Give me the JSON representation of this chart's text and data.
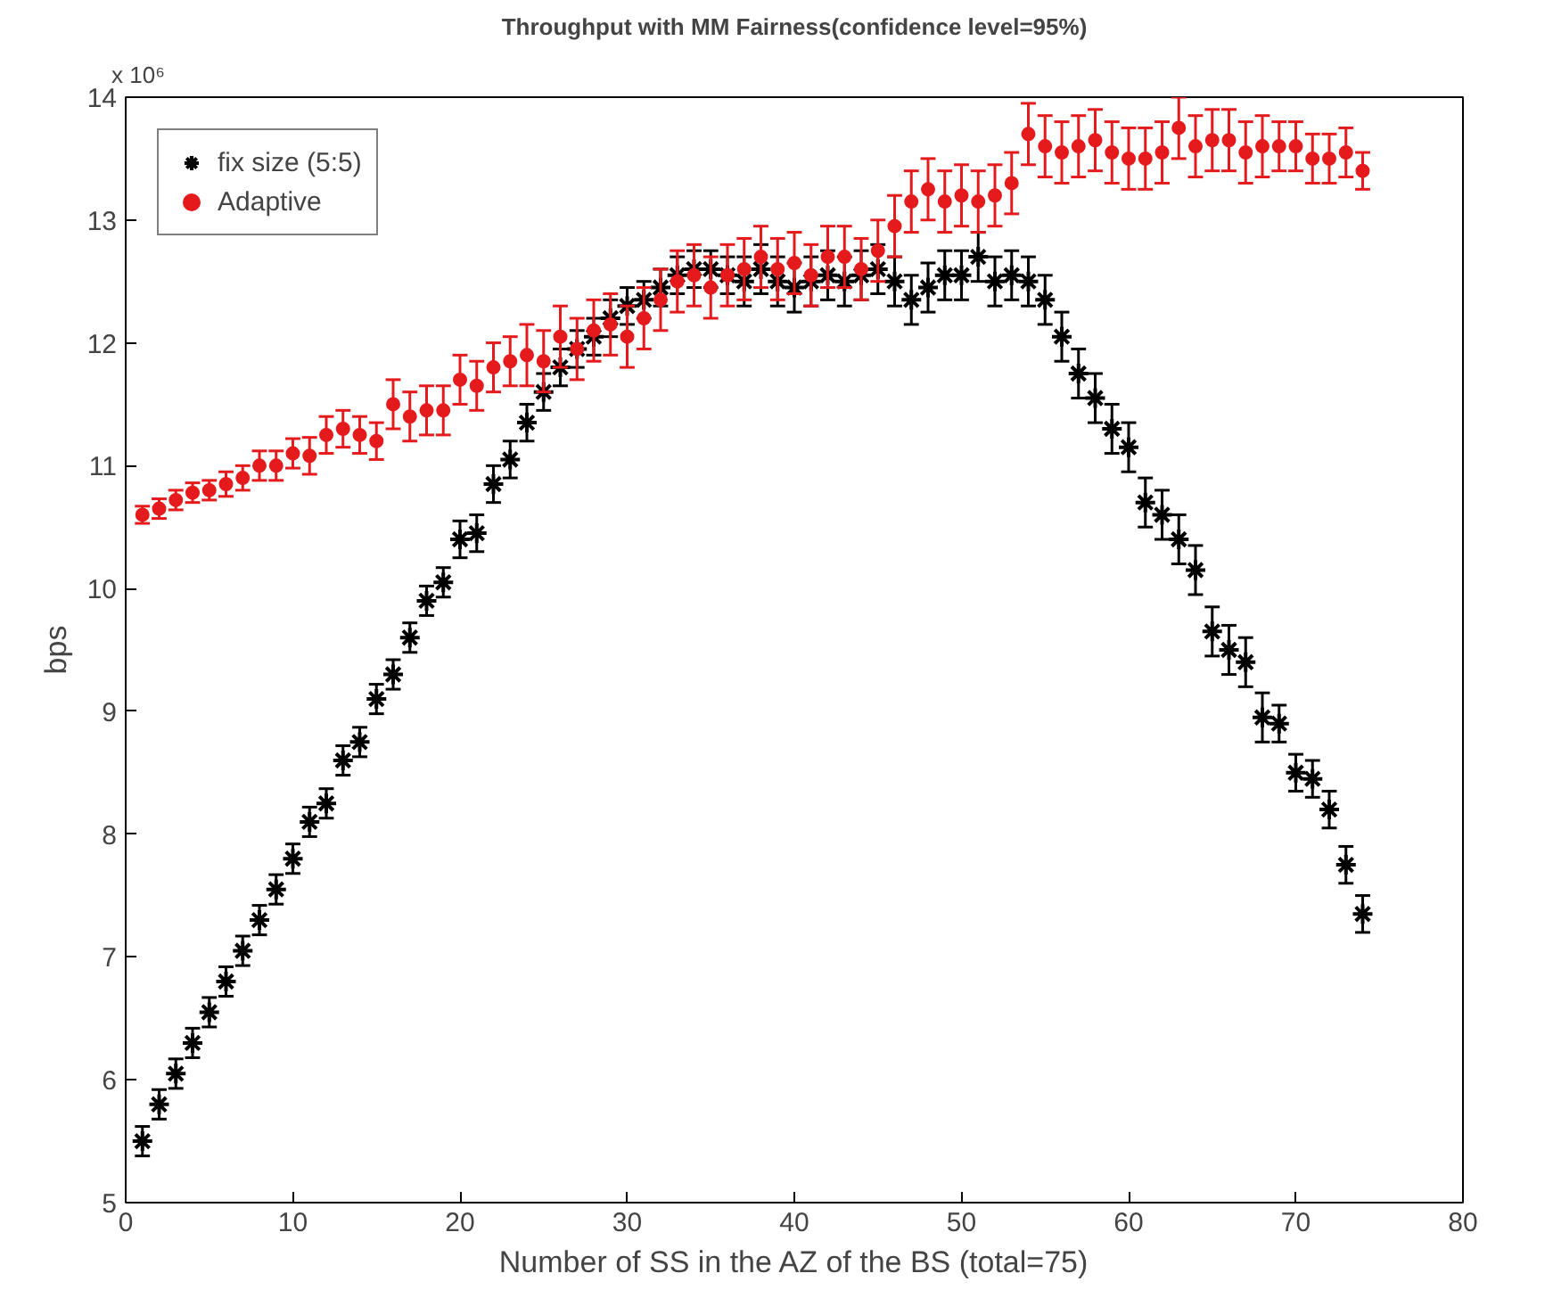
{
  "chart_data": {
    "type": "scatter",
    "title": "Throughput with MM Fairness(confidence level=95%)",
    "xlabel": "Number of SS in the AZ of the BS (total=75)",
    "ylabel": "bps",
    "annotations": [
      "x 10⁶"
    ],
    "x": [
      1,
      2,
      3,
      4,
      5,
      6,
      7,
      8,
      9,
      10,
      11,
      12,
      13,
      14,
      15,
      16,
      17,
      18,
      19,
      20,
      21,
      22,
      23,
      24,
      25,
      26,
      27,
      28,
      29,
      30,
      31,
      32,
      33,
      34,
      35,
      36,
      37,
      38,
      39,
      40,
      41,
      42,
      43,
      44,
      45,
      46,
      47,
      48,
      49,
      50,
      51,
      52,
      53,
      54,
      55,
      56,
      57,
      58,
      59,
      60,
      61,
      62,
      63,
      64,
      65,
      66,
      67,
      68,
      69,
      70,
      71,
      72,
      73,
      74
    ],
    "xlim": [
      0,
      80
    ],
    "xticks": [
      0,
      10,
      20,
      30,
      40,
      50,
      60,
      70,
      80
    ],
    "ylim": [
      5,
      14
    ],
    "yticks": [
      5,
      6,
      7,
      8,
      9,
      10,
      11,
      12,
      13,
      14
    ],
    "grid": false,
    "legend": "top left",
    "series": [
      {
        "name": "fix size (5:5)",
        "color": "#000000",
        "marker": "cross",
        "values": [
          5.5,
          5.8,
          6.05,
          6.3,
          6.55,
          6.8,
          7.05,
          7.3,
          7.55,
          7.8,
          8.1,
          8.25,
          8.6,
          8.75,
          9.1,
          9.3,
          9.6,
          9.9,
          10.05,
          10.4,
          10.45,
          10.85,
          11.05,
          11.35,
          11.6,
          11.8,
          11.95,
          12.05,
          12.2,
          12.3,
          12.35,
          12.45,
          12.55,
          12.6,
          12.6,
          12.55,
          12.5,
          12.6,
          12.5,
          12.45,
          12.5,
          12.55,
          12.5,
          12.55,
          12.6,
          12.5,
          12.35,
          12.45,
          12.55,
          12.55,
          12.7,
          12.5,
          12.55,
          12.5,
          12.35,
          12.05,
          11.75,
          11.55,
          11.3,
          11.15,
          10.7,
          10.6,
          10.4,
          10.15,
          9.65,
          9.5,
          9.4,
          8.95,
          8.9,
          8.5,
          8.45,
          8.2,
          7.75,
          7.35
        ],
        "errors": [
          0.12,
          0.12,
          0.12,
          0.12,
          0.12,
          0.12,
          0.12,
          0.12,
          0.12,
          0.12,
          0.12,
          0.12,
          0.12,
          0.12,
          0.12,
          0.12,
          0.12,
          0.12,
          0.12,
          0.15,
          0.15,
          0.15,
          0.15,
          0.15,
          0.15,
          0.15,
          0.15,
          0.15,
          0.15,
          0.15,
          0.15,
          0.15,
          0.15,
          0.15,
          0.15,
          0.15,
          0.2,
          0.2,
          0.2,
          0.2,
          0.2,
          0.2,
          0.2,
          0.2,
          0.2,
          0.2,
          0.2,
          0.2,
          0.2,
          0.2,
          0.2,
          0.2,
          0.2,
          0.2,
          0.2,
          0.2,
          0.2,
          0.2,
          0.2,
          0.2,
          0.2,
          0.2,
          0.2,
          0.2,
          0.2,
          0.2,
          0.2,
          0.2,
          0.15,
          0.15,
          0.15,
          0.15,
          0.15,
          0.15
        ]
      },
      {
        "name": "Adaptive",
        "color": "#e41a1c",
        "marker": "circle",
        "values": [
          10.6,
          10.65,
          10.72,
          10.78,
          10.8,
          10.85,
          10.9,
          11.0,
          11.0,
          11.1,
          11.08,
          11.25,
          11.3,
          11.25,
          11.2,
          11.5,
          11.4,
          11.45,
          11.45,
          11.7,
          11.65,
          11.8,
          11.85,
          11.9,
          11.85,
          12.05,
          11.95,
          12.1,
          12.15,
          12.05,
          12.2,
          12.35,
          12.5,
          12.55,
          12.45,
          12.55,
          12.6,
          12.7,
          12.6,
          12.65,
          12.55,
          12.7,
          12.7,
          12.6,
          12.75,
          12.95,
          13.15,
          13.25,
          13.15,
          13.2,
          13.15,
          13.2,
          13.3,
          13.7,
          13.6,
          13.55,
          13.6,
          13.65,
          13.55,
          13.5,
          13.5,
          13.55,
          13.75,
          13.6,
          13.65,
          13.65,
          13.55,
          13.6,
          13.6,
          13.6,
          13.5,
          13.5,
          13.55,
          13.4
        ],
        "errors": [
          0.07,
          0.08,
          0.08,
          0.08,
          0.08,
          0.1,
          0.1,
          0.12,
          0.12,
          0.12,
          0.15,
          0.15,
          0.15,
          0.15,
          0.15,
          0.2,
          0.2,
          0.2,
          0.2,
          0.2,
          0.2,
          0.2,
          0.2,
          0.25,
          0.25,
          0.25,
          0.25,
          0.25,
          0.25,
          0.25,
          0.25,
          0.25,
          0.25,
          0.25,
          0.25,
          0.25,
          0.25,
          0.25,
          0.25,
          0.25,
          0.25,
          0.25,
          0.25,
          0.25,
          0.25,
          0.25,
          0.25,
          0.25,
          0.25,
          0.25,
          0.25,
          0.25,
          0.25,
          0.25,
          0.25,
          0.25,
          0.25,
          0.25,
          0.25,
          0.25,
          0.25,
          0.25,
          0.25,
          0.25,
          0.25,
          0.25,
          0.25,
          0.25,
          0.2,
          0.2,
          0.2,
          0.2,
          0.2,
          0.15
        ]
      }
    ]
  }
}
